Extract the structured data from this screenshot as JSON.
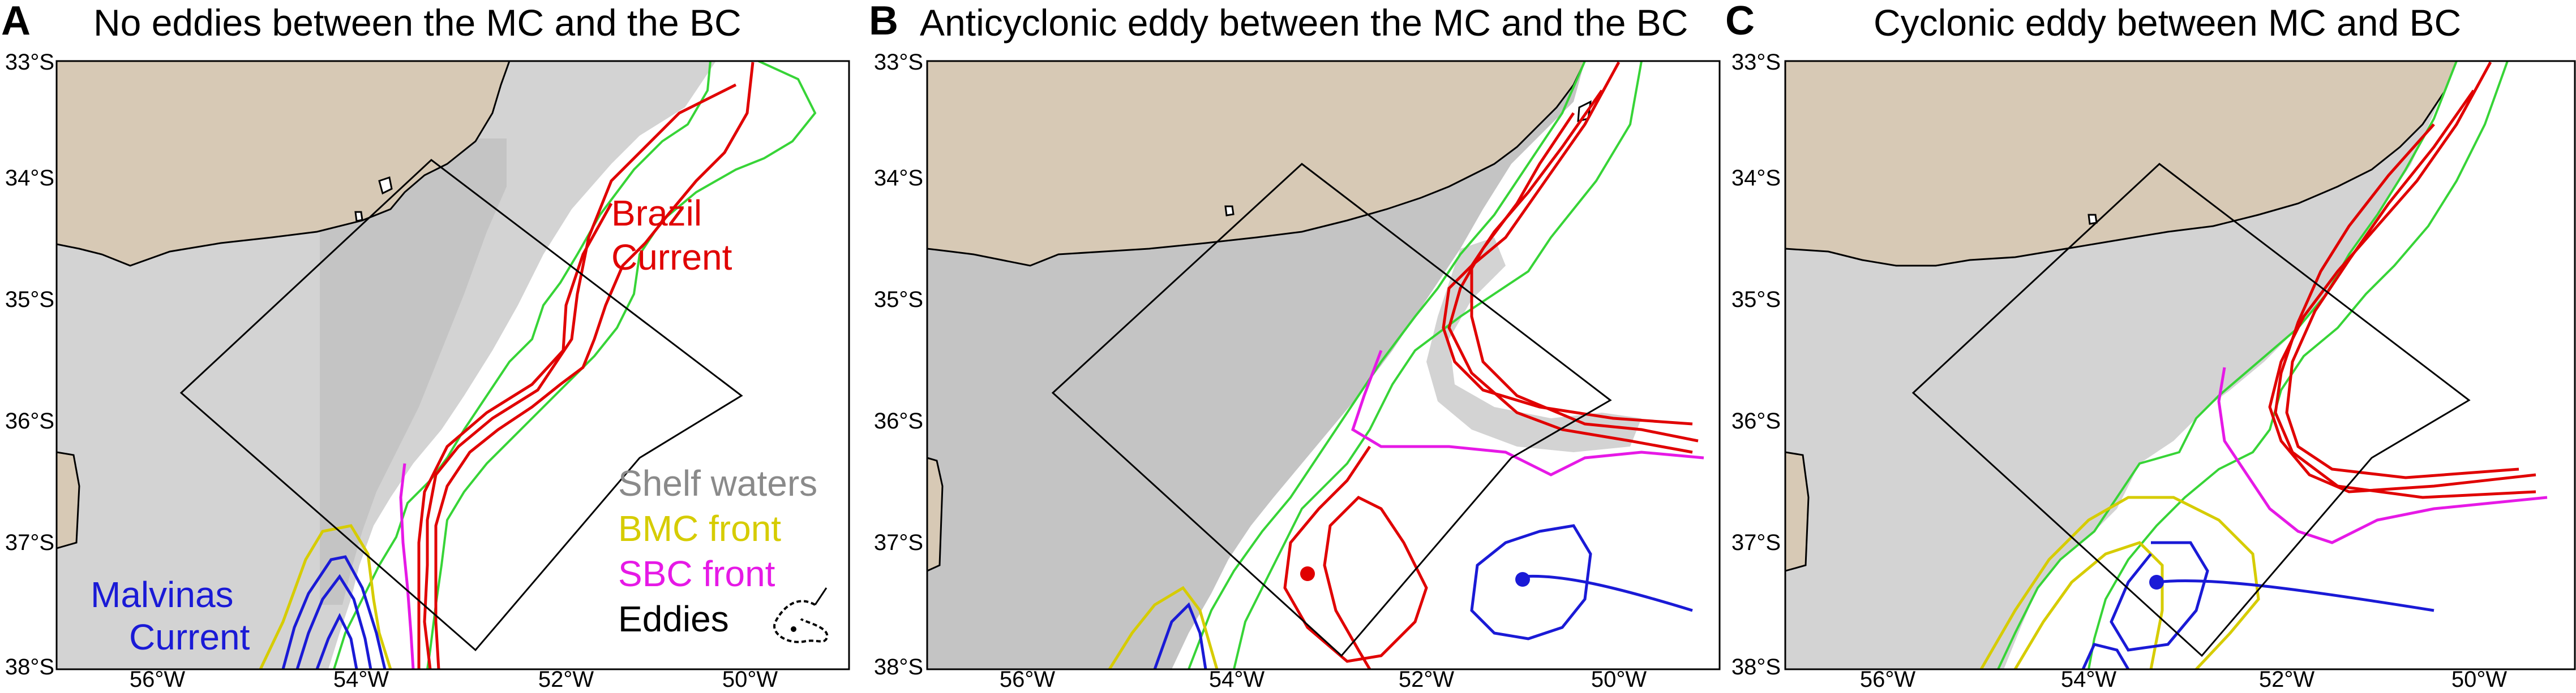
{
  "panels": [
    {
      "letter": "A",
      "title": "No eddies between the MC and the BC"
    },
    {
      "letter": "B",
      "title": "Anticyclonic eddy between the MC and the BC"
    },
    {
      "letter": "C",
      "title": "Cyclonic eddy between MC and BC"
    }
  ],
  "lat_ticks": [
    "33°S",
    "34°S",
    "35°S",
    "36°S",
    "37°S",
    "38°S"
  ],
  "lon_ticks": [
    "56°W",
    "54°W",
    "52°W",
    "50°W"
  ],
  "labels": {
    "brazil_current": [
      "Brazil",
      "Current"
    ],
    "malvinas_current": [
      "Malvinas",
      "Current"
    ]
  },
  "legend": {
    "shelf": "Shelf waters",
    "bmc": "BMC front",
    "sbc": "SBC front",
    "eddies": "Eddies"
  },
  "colors": {
    "land": "#d7c9b5",
    "shelf": "#d3d3d3",
    "shelf_dark": "#c4c4c4",
    "isobath": "#37d437",
    "brazil_current": "#e00000",
    "malvinas_current": "#1a1ad6",
    "bmc_front": "#d6cc00",
    "sbc_front": "#e619e6",
    "shelf_label": "#8a8a8a"
  }
}
